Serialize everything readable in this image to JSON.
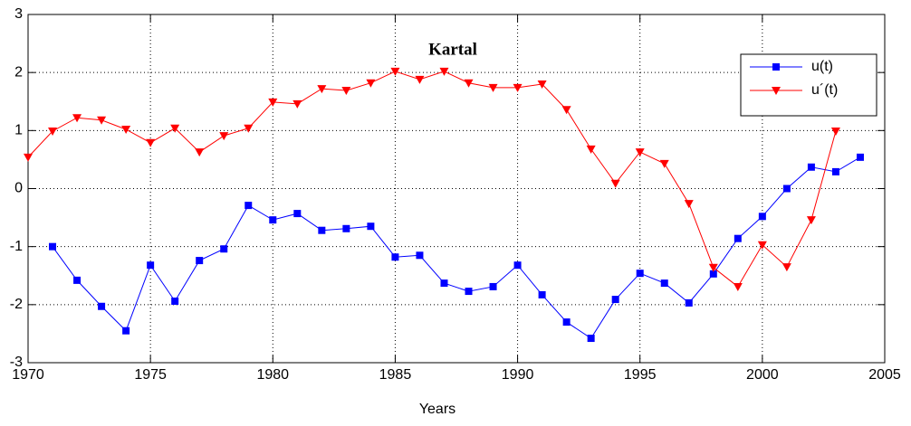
{
  "chart_data": {
    "type": "line",
    "title": "Kartal",
    "xlabel": "Years",
    "x": [
      1970,
      1971,
      1972,
      1973,
      1974,
      1975,
      1976,
      1977,
      1978,
      1979,
      1980,
      1981,
      1982,
      1983,
      1984,
      1985,
      1986,
      1987,
      1988,
      1989,
      1990,
      1991,
      1992,
      1993,
      1994,
      1995,
      1996,
      1997,
      1998,
      1999,
      2000,
      2001,
      2002,
      2003,
      2004
    ],
    "series": [
      {
        "name": "u(t)",
        "color": "#0000ff",
        "marker": "square",
        "values": [
          null,
          -1.0,
          -1.58,
          -2.03,
          -2.45,
          -1.32,
          -1.94,
          -1.24,
          -1.04,
          -0.29,
          -0.54,
          -0.43,
          -0.72,
          -0.69,
          -0.65,
          -1.18,
          -1.15,
          -1.63,
          -1.77,
          -1.69,
          -1.32,
          -1.83,
          -2.3,
          -2.58,
          -1.91,
          -1.46,
          -1.63,
          -1.97,
          -1.47,
          -0.86,
          -0.48,
          0.0,
          0.37,
          0.29,
          0.54
        ]
      },
      {
        "name": "u´(t)",
        "color": "#ff0000",
        "marker": "triangle-down",
        "values": [
          0.54,
          0.99,
          1.22,
          1.18,
          1.02,
          0.79,
          1.04,
          0.63,
          0.91,
          1.04,
          1.49,
          1.46,
          1.72,
          1.69,
          1.82,
          2.02,
          1.88,
          2.02,
          1.82,
          1.74,
          1.74,
          1.8,
          1.36,
          0.68,
          0.09,
          0.63,
          0.43,
          -0.26,
          -1.36,
          -1.69,
          -0.97,
          -1.35,
          -0.54,
          0.99,
          null
        ]
      }
    ],
    "xlim": [
      1970,
      2005
    ],
    "xticks": [
      1970,
      1975,
      1980,
      1985,
      1990,
      1995,
      2000,
      2005
    ],
    "ylim": [
      -3,
      3
    ],
    "yticks": [
      -3,
      -2,
      -1,
      0,
      1,
      2,
      3
    ],
    "grid": true,
    "legend": "upper right"
  }
}
